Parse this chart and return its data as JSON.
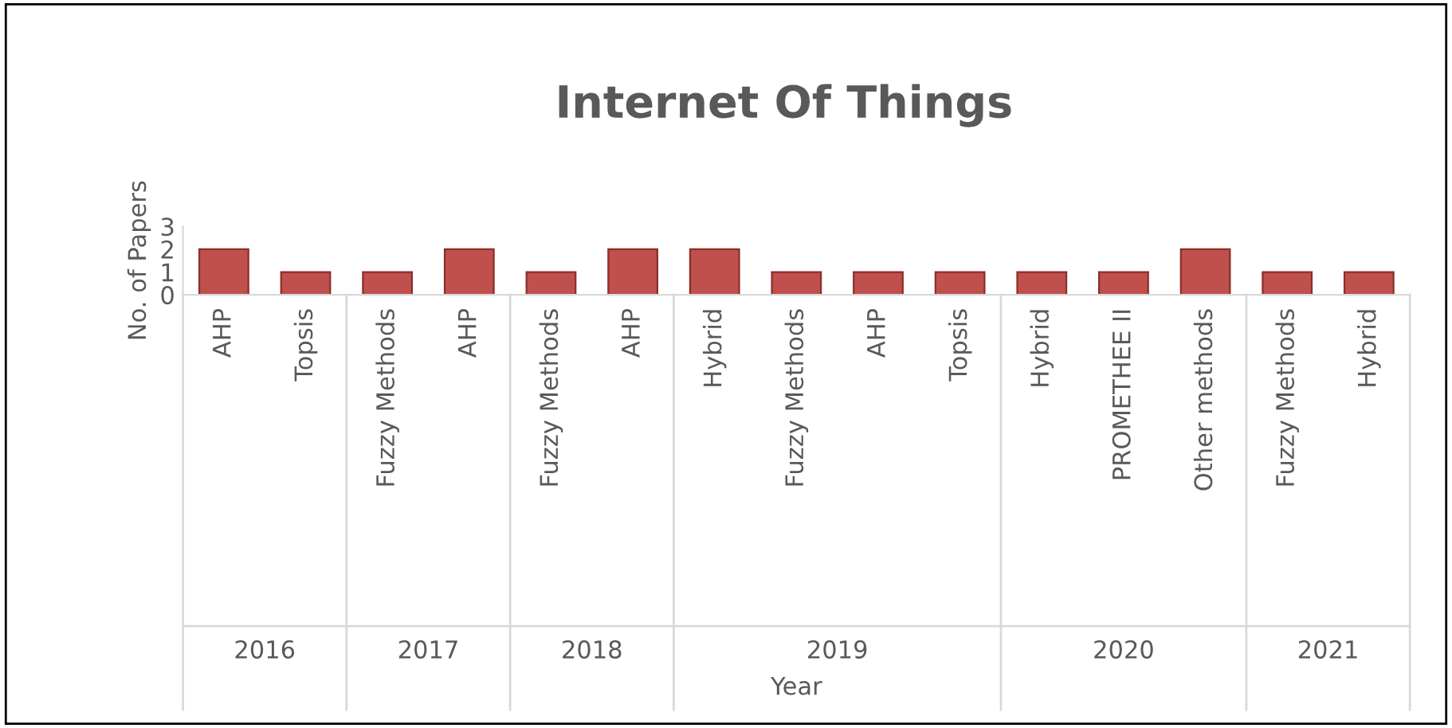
{
  "chart_data": {
    "type": "bar",
    "title": "Internet Of Things",
    "ylabel": "No. of Papers",
    "categories": [
      "AHP",
      "Topsis",
      "Fuzzy Methods",
      "AHP",
      "Fuzzy Methods",
      "AHP",
      "Hybrid",
      "Fuzzy Methods",
      "AHP",
      "Topsis",
      "Hybrid",
      "PROMETHEE II",
      "Other methods",
      "Fuzzy Methods",
      "Hybrid"
    ],
    "values": [
      2,
      1,
      1,
      2,
      1,
      2,
      2,
      1,
      1,
      1,
      1,
      1,
      2,
      1,
      1
    ],
    "color": "#c0504d",
    "ylim": [
      0,
      3
    ],
    "yticks": [
      0,
      1,
      2,
      3
    ],
    "grid": false,
    "legend": false,
    "annotations": [
      "2016",
      "2017",
      "2018",
      "2019",
      "2020",
      "2021",
      "Year"
    ]
  }
}
